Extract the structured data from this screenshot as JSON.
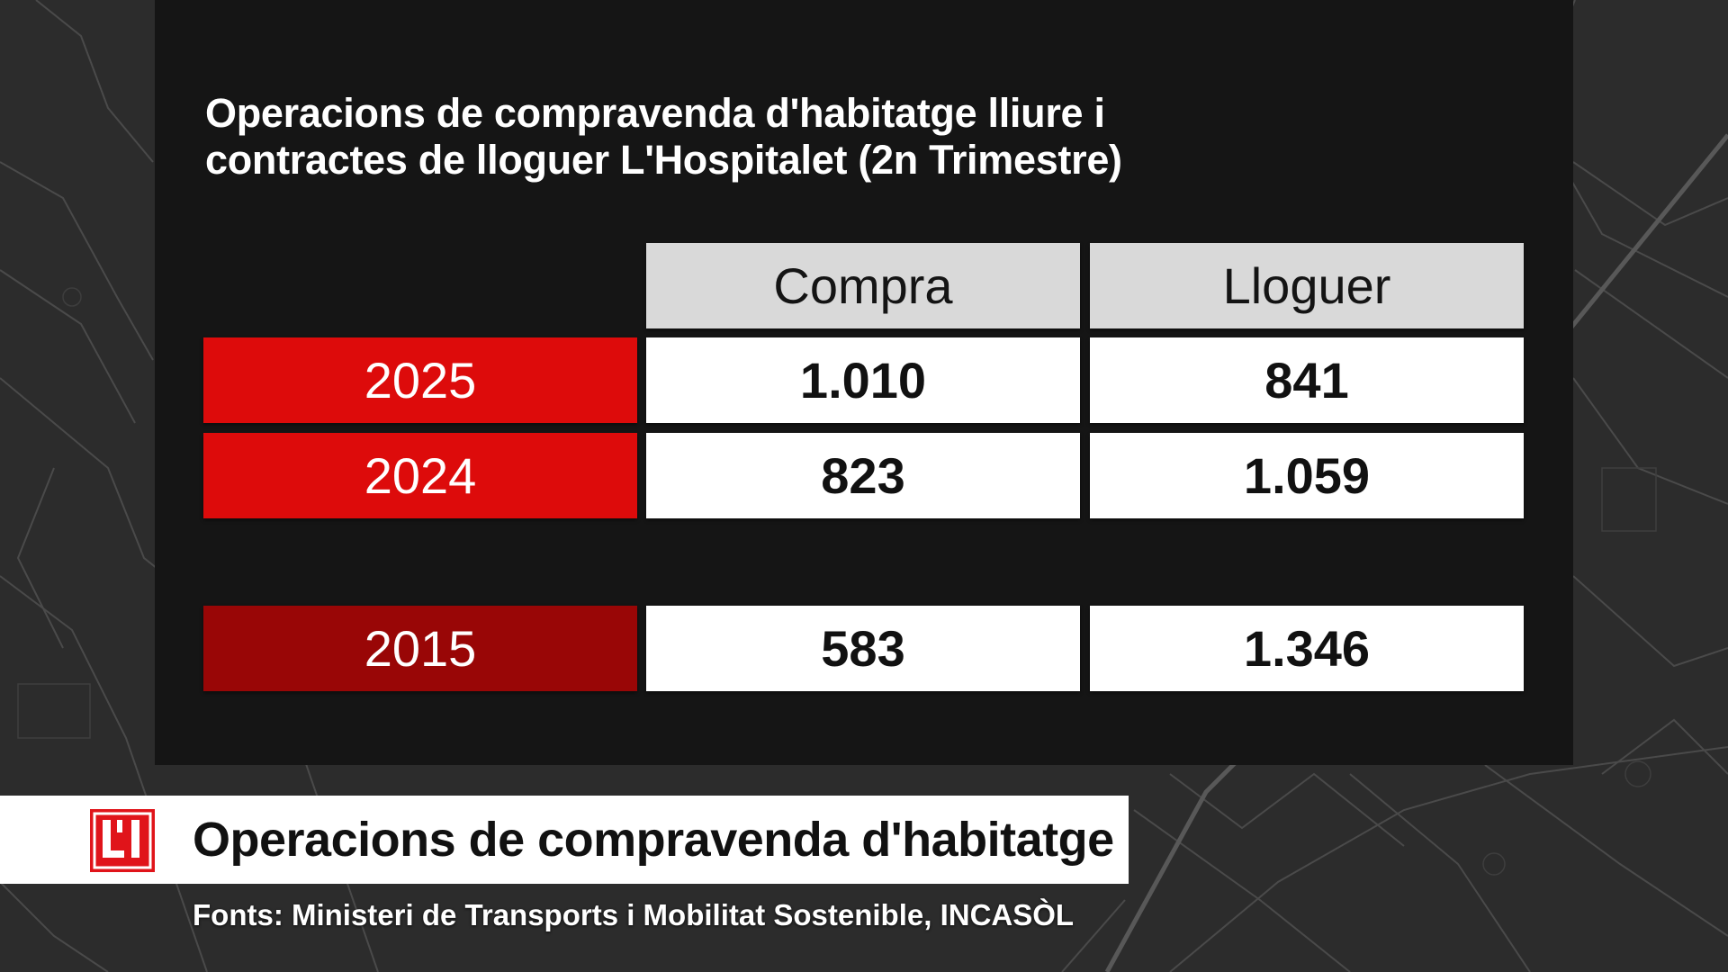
{
  "chart_data": {
    "type": "table",
    "title_line1": "Operacions de compravenda d'habitatge lliure i",
    "title_line2": "contractes de lloguer L'Hospitalet (2n Trimestre)",
    "columns": [
      "Compra",
      "Lloguer"
    ],
    "rows": [
      {
        "year": "2025",
        "values": [
          "1.010",
          "841"
        ],
        "color": "#dd0b0b"
      },
      {
        "year": "2024",
        "values": [
          "823",
          "1.059"
        ],
        "color": "#dd0b0b"
      },
      {
        "year": "2015",
        "values": [
          "583",
          "1.346"
        ],
        "color": "#990606"
      }
    ]
  },
  "lower_third": {
    "logo_text": "L'H",
    "title": "Operacions de compravenda d'habitatge",
    "sources": "Fonts: Ministeri de Transports i Mobilitat Sostenible, INCASÒL"
  },
  "colors": {
    "brand_red": "#e0141a",
    "panel": "#151515",
    "header_gray": "#d9d9d9"
  }
}
